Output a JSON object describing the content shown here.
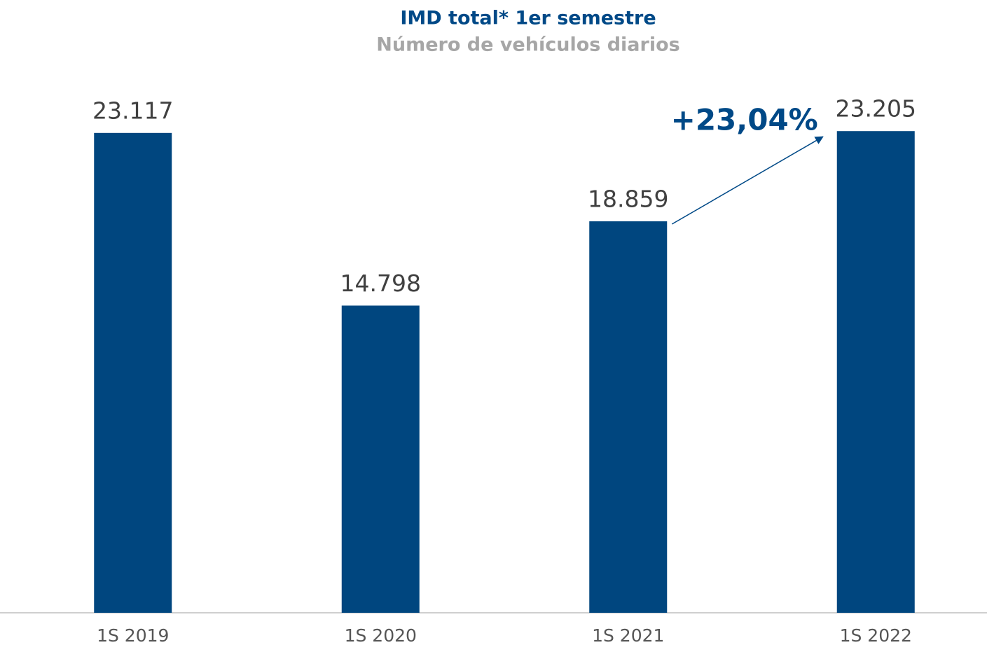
{
  "chart_data": {
    "type": "bar",
    "title": "IMD total* 1er semestre",
    "subtitle": "Número de vehículos diarios",
    "categories": [
      "1S 2019",
      "1S 2020",
      "1S 2021",
      "1S 2022"
    ],
    "values": [
      23117,
      14798,
      18859,
      23205
    ],
    "value_labels": [
      "23.117",
      "14.798",
      "18.859",
      "23.205"
    ],
    "color": "#00467f",
    "ylim": [
      0,
      25000
    ],
    "annotation": "+23,04%"
  }
}
